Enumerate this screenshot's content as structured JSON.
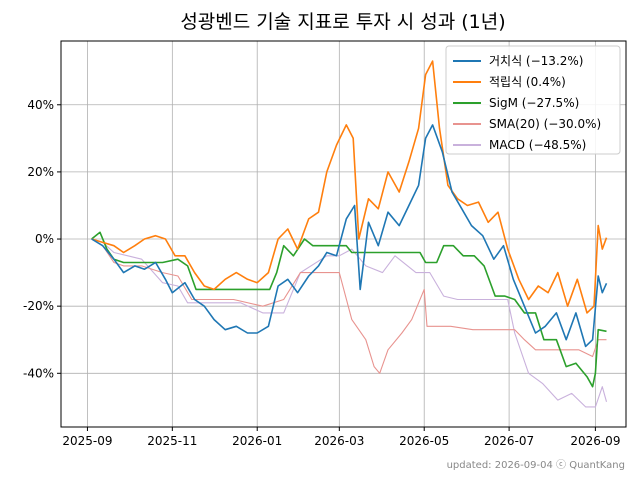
{
  "chart_data": {
    "type": "line",
    "title": "성광벤드 기술 지표로 투자 시 성과 (1년)",
    "footer": "updated: 2026-09-04 ⓒ QuantKang",
    "x_tick_labels": [
      "2025-09",
      "2025-11",
      "2026-01",
      "2026-03",
      "2026-05",
      "2026-07",
      "2026-09"
    ],
    "y_tick_labels": [
      "-40%",
      "-20%",
      "0%",
      "20%",
      "40%"
    ],
    "y_ticks": [
      -40,
      -20,
      0,
      20,
      40
    ],
    "xlim": [
      "2025-08-13",
      "2026-09-23"
    ],
    "ylim": [
      -56,
      59
    ],
    "grid": true,
    "legend_position": "top-right",
    "series": [
      {
        "name": "거치식 (−13.2%)",
        "color": "#1f77b4",
        "points": [
          [
            "2025-09-04",
            0
          ],
          [
            "2025-09-12",
            -2
          ],
          [
            "2025-09-20",
            -6
          ],
          [
            "2025-09-27",
            -10
          ],
          [
            "2025-10-05",
            -8
          ],
          [
            "2025-10-12",
            -9
          ],
          [
            "2025-10-20",
            -7
          ],
          [
            "2025-10-27",
            -12
          ],
          [
            "2025-11-01",
            -16
          ],
          [
            "2025-11-10",
            -13
          ],
          [
            "2025-11-17",
            -18
          ],
          [
            "2025-11-24",
            -20
          ],
          [
            "2025-12-01",
            -24
          ],
          [
            "2025-12-09",
            -27
          ],
          [
            "2025-12-17",
            -26
          ],
          [
            "2025-12-25",
            -28
          ],
          [
            "2026-01-01",
            -28
          ],
          [
            "2026-01-09",
            -26
          ],
          [
            "2026-01-16",
            -14
          ],
          [
            "2026-01-23",
            -12
          ],
          [
            "2026-01-30",
            -16
          ],
          [
            "2026-02-07",
            -11
          ],
          [
            "2026-02-14",
            -8
          ],
          [
            "2026-02-20",
            -4
          ],
          [
            "2026-02-27",
            -5
          ],
          [
            "2026-03-06",
            6
          ],
          [
            "2026-03-12",
            10
          ],
          [
            "2026-03-16",
            -15
          ],
          [
            "2026-03-22",
            5
          ],
          [
            "2026-03-29",
            -2
          ],
          [
            "2026-04-05",
            8
          ],
          [
            "2026-04-13",
            4
          ],
          [
            "2026-04-20",
            10
          ],
          [
            "2026-04-27",
            16
          ],
          [
            "2026-05-02",
            30
          ],
          [
            "2026-05-07",
            34
          ],
          [
            "2026-05-14",
            26
          ],
          [
            "2026-05-21",
            14
          ],
          [
            "2026-05-28",
            9
          ],
          [
            "2026-06-04",
            4
          ],
          [
            "2026-06-12",
            1
          ],
          [
            "2026-06-20",
            -6
          ],
          [
            "2026-06-27",
            -2
          ],
          [
            "2026-07-04",
            -12
          ],
          [
            "2026-07-12",
            -20
          ],
          [
            "2026-07-20",
            -28
          ],
          [
            "2026-07-27",
            -26
          ],
          [
            "2026-08-04",
            -22
          ],
          [
            "2026-08-11",
            -30
          ],
          [
            "2026-08-18",
            -22
          ],
          [
            "2026-08-25",
            -32
          ],
          [
            "2026-08-30",
            -30
          ],
          [
            "2026-09-03",
            -11
          ],
          [
            "2026-09-06",
            -16
          ],
          [
            "2026-09-09",
            -13.2
          ]
        ]
      },
      {
        "name": "적립식 (0.4%)",
        "color": "#ff7f0e",
        "points": [
          [
            "2025-09-04",
            0
          ],
          [
            "2025-09-12",
            -1
          ],
          [
            "2025-09-20",
            -2
          ],
          [
            "2025-09-27",
            -4
          ],
          [
            "2025-10-05",
            -2
          ],
          [
            "2025-10-12",
            0
          ],
          [
            "2025-10-20",
            1
          ],
          [
            "2025-10-27",
            0
          ],
          [
            "2025-11-03",
            -5
          ],
          [
            "2025-11-10",
            -5
          ],
          [
            "2025-11-17",
            -10
          ],
          [
            "2025-11-24",
            -14
          ],
          [
            "2025-12-01",
            -15
          ],
          [
            "2025-12-09",
            -12
          ],
          [
            "2025-12-17",
            -10
          ],
          [
            "2025-12-25",
            -12
          ],
          [
            "2026-01-01",
            -13
          ],
          [
            "2026-01-09",
            -10
          ],
          [
            "2026-01-16",
            0
          ],
          [
            "2026-01-23",
            3
          ],
          [
            "2026-01-30",
            -3
          ],
          [
            "2026-02-07",
            6
          ],
          [
            "2026-02-14",
            8
          ],
          [
            "2026-02-20",
            20
          ],
          [
            "2026-02-27",
            28
          ],
          [
            "2026-03-06",
            34
          ],
          [
            "2026-03-11",
            30
          ],
          [
            "2026-03-15",
            0
          ],
          [
            "2026-03-22",
            12
          ],
          [
            "2026-03-29",
            9
          ],
          [
            "2026-04-05",
            20
          ],
          [
            "2026-04-13",
            14
          ],
          [
            "2026-04-20",
            23
          ],
          [
            "2026-04-27",
            33
          ],
          [
            "2026-05-02",
            49
          ],
          [
            "2026-05-07",
            53
          ],
          [
            "2026-05-12",
            33
          ],
          [
            "2026-05-18",
            16
          ],
          [
            "2026-05-25",
            12
          ],
          [
            "2026-06-01",
            10
          ],
          [
            "2026-06-09",
            11
          ],
          [
            "2026-06-16",
            5
          ],
          [
            "2026-06-23",
            8
          ],
          [
            "2026-06-30",
            -3
          ],
          [
            "2026-07-08",
            -12
          ],
          [
            "2026-07-15",
            -18
          ],
          [
            "2026-07-22",
            -14
          ],
          [
            "2026-07-29",
            -16
          ],
          [
            "2026-08-05",
            -10
          ],
          [
            "2026-08-12",
            -20
          ],
          [
            "2026-08-19",
            -12
          ],
          [
            "2026-08-26",
            -22
          ],
          [
            "2026-08-31",
            -20
          ],
          [
            "2026-09-03",
            4
          ],
          [
            "2026-09-06",
            -3
          ],
          [
            "2026-09-09",
            0.4
          ]
        ]
      },
      {
        "name": "SigM (−27.5%)",
        "color": "#2ca02c",
        "points": [
          [
            "2025-09-04",
            0
          ],
          [
            "2025-09-10",
            2
          ],
          [
            "2025-09-15",
            -3
          ],
          [
            "2025-09-20",
            -6
          ],
          [
            "2025-09-27",
            -7
          ],
          [
            "2025-10-10",
            -7
          ],
          [
            "2025-10-25",
            -7
          ],
          [
            "2025-11-05",
            -6
          ],
          [
            "2025-11-12",
            -8
          ],
          [
            "2025-11-18",
            -15
          ],
          [
            "2025-12-15",
            -15
          ],
          [
            "2026-01-10",
            -15
          ],
          [
            "2026-01-15",
            -10
          ],
          [
            "2026-01-20",
            -2
          ],
          [
            "2026-01-27",
            -5
          ],
          [
            "2026-02-04",
            0
          ],
          [
            "2026-02-10",
            -2
          ],
          [
            "2026-02-25",
            -2
          ],
          [
            "2026-03-06",
            -2
          ],
          [
            "2026-03-10",
            -4
          ],
          [
            "2026-04-15",
            -4
          ],
          [
            "2026-04-28",
            -4
          ],
          [
            "2026-05-02",
            -7
          ],
          [
            "2026-05-10",
            -7
          ],
          [
            "2026-05-15",
            -2
          ],
          [
            "2026-05-22",
            -2
          ],
          [
            "2026-05-29",
            -5
          ],
          [
            "2026-06-06",
            -5
          ],
          [
            "2026-06-13",
            -8
          ],
          [
            "2026-06-21",
            -17
          ],
          [
            "2026-06-28",
            -17
          ],
          [
            "2026-07-05",
            -18
          ],
          [
            "2026-07-12",
            -22
          ],
          [
            "2026-07-20",
            -22
          ],
          [
            "2026-07-26",
            -30
          ],
          [
            "2026-08-04",
            -30
          ],
          [
            "2026-08-11",
            -38
          ],
          [
            "2026-08-18",
            -37
          ],
          [
            "2026-08-26",
            -41
          ],
          [
            "2026-08-30",
            -44
          ],
          [
            "2026-09-01",
            -40
          ],
          [
            "2026-09-03",
            -27
          ],
          [
            "2026-09-09",
            -27.5
          ]
        ]
      },
      {
        "name": "SMA(20) (−30.0%)",
        "color": "#e8938f",
        "points": [
          [
            "2025-09-04",
            0
          ],
          [
            "2025-09-12",
            -2
          ],
          [
            "2025-09-20",
            -7
          ],
          [
            "2025-09-27",
            -8
          ],
          [
            "2025-10-10",
            -8
          ],
          [
            "2025-10-25",
            -10
          ],
          [
            "2025-11-05",
            -11
          ],
          [
            "2025-11-15",
            -18
          ],
          [
            "2025-12-15",
            -18
          ],
          [
            "2026-01-05",
            -20
          ],
          [
            "2026-01-20",
            -18
          ],
          [
            "2026-02-01",
            -10
          ],
          [
            "2026-02-15",
            -10
          ],
          [
            "2026-03-01",
            -10
          ],
          [
            "2026-03-10",
            -24
          ],
          [
            "2026-03-20",
            -30
          ],
          [
            "2026-03-26",
            -38
          ],
          [
            "2026-03-30",
            -40
          ],
          [
            "2026-04-05",
            -33
          ],
          [
            "2026-04-15",
            -28
          ],
          [
            "2026-04-22",
            -24
          ],
          [
            "2026-05-01",
            -15
          ],
          [
            "2026-05-03",
            -26
          ],
          [
            "2026-05-20",
            -26
          ],
          [
            "2026-06-05",
            -27
          ],
          [
            "2026-06-20",
            -27
          ],
          [
            "2026-07-05",
            -27
          ],
          [
            "2026-07-12",
            -30
          ],
          [
            "2026-07-20",
            -33
          ],
          [
            "2026-08-01",
            -33
          ],
          [
            "2026-08-20",
            -33
          ],
          [
            "2026-08-30",
            -35
          ],
          [
            "2026-09-03",
            -30
          ],
          [
            "2026-09-09",
            -30.0
          ]
        ]
      },
      {
        "name": "MACD (−48.5%)",
        "color": "#c9b1dc",
        "points": [
          [
            "2025-09-04",
            0
          ],
          [
            "2025-09-12",
            -1
          ],
          [
            "2025-09-20",
            -4
          ],
          [
            "2025-09-30",
            -5
          ],
          [
            "2025-10-10",
            -6
          ],
          [
            "2025-10-25",
            -13
          ],
          [
            "2025-11-05",
            -14
          ],
          [
            "2025-11-12",
            -19
          ],
          [
            "2025-12-01",
            -19
          ],
          [
            "2025-12-20",
            -19
          ],
          [
            "2026-01-05",
            -22
          ],
          [
            "2026-01-20",
            -22
          ],
          [
            "2026-02-01",
            -10
          ],
          [
            "2026-02-20",
            -5
          ],
          [
            "2026-03-01",
            -5
          ],
          [
            "2026-03-10",
            -3
          ],
          [
            "2026-03-20",
            -8
          ],
          [
            "2026-04-01",
            -10
          ],
          [
            "2026-04-10",
            -5
          ],
          [
            "2026-04-25",
            -10
          ],
          [
            "2026-05-05",
            -10
          ],
          [
            "2026-05-15",
            -17
          ],
          [
            "2026-05-25",
            -18
          ],
          [
            "2026-06-15",
            -18
          ],
          [
            "2026-06-30",
            -18
          ],
          [
            "2026-07-05",
            -28
          ],
          [
            "2026-07-15",
            -40
          ],
          [
            "2026-07-25",
            -43
          ],
          [
            "2026-08-05",
            -48
          ],
          [
            "2026-08-15",
            -46
          ],
          [
            "2026-08-25",
            -50
          ],
          [
            "2026-09-01",
            -50
          ],
          [
            "2026-09-06",
            -44
          ],
          [
            "2026-09-09",
            -48.5
          ]
        ]
      }
    ]
  }
}
